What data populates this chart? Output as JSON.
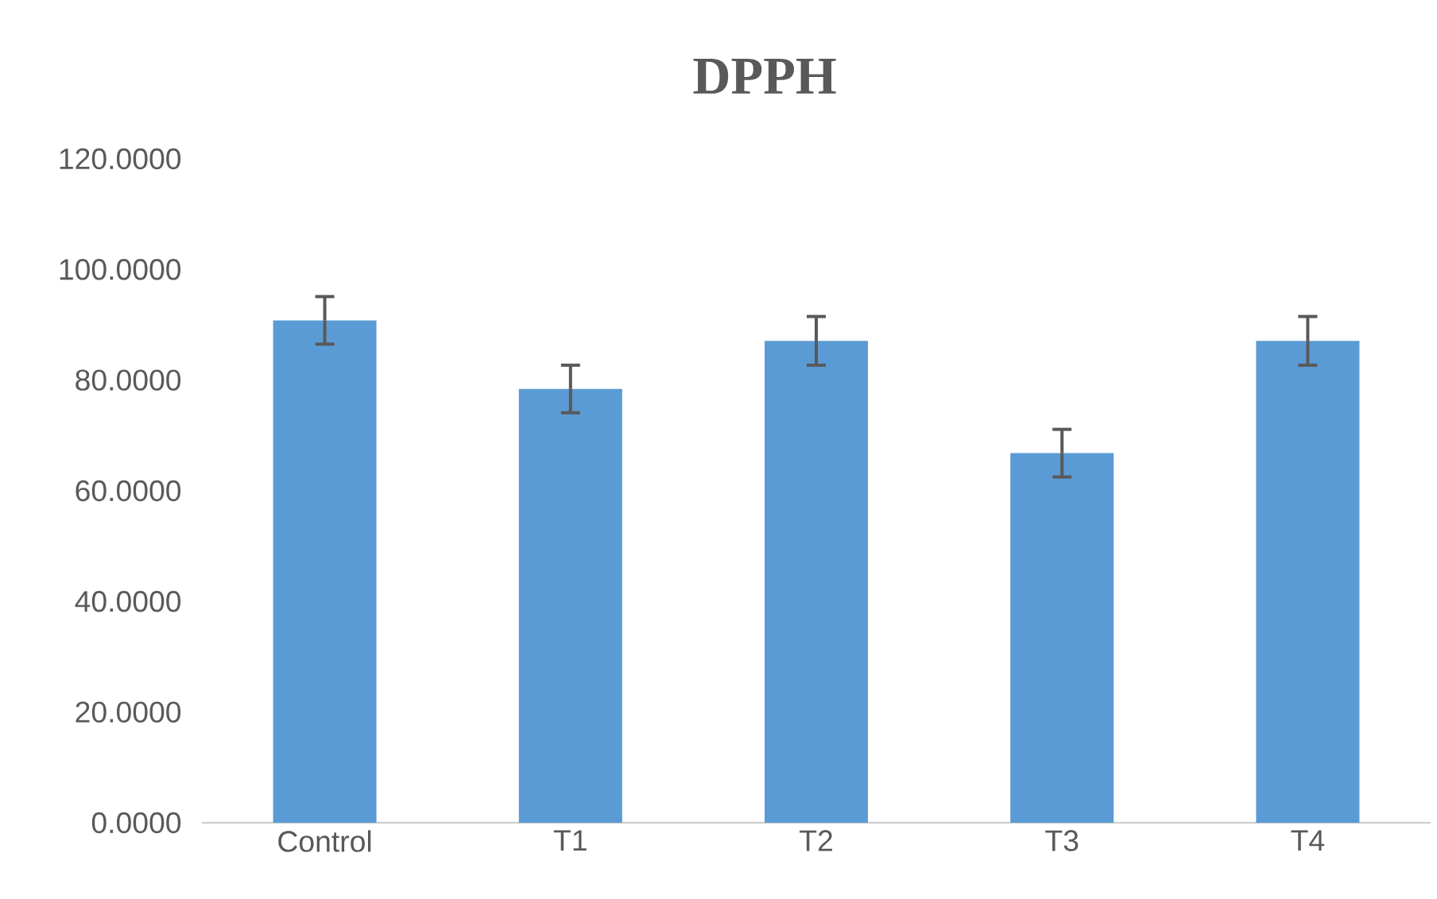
{
  "chart_data": {
    "type": "bar",
    "title": "DPPH",
    "categories": [
      "Control",
      "T1",
      "T2",
      "T3",
      "T4"
    ],
    "values": [
      90.8,
      78.4,
      87.1,
      66.8,
      87.1
    ],
    "errors": [
      4.3,
      4.3,
      4.4,
      4.3,
      4.4
    ],
    "color": "#5b9bd5",
    "ylim": [
      0,
      120
    ],
    "yticks": [
      {
        "value": 0,
        "label": "0.0000"
      },
      {
        "value": 20,
        "label": "20.0000"
      },
      {
        "value": 40,
        "label": "40.0000"
      },
      {
        "value": 60,
        "label": "60.0000"
      },
      {
        "value": 80,
        "label": "80.0000"
      },
      {
        "value": 100,
        "label": "100.0000"
      },
      {
        "value": 120,
        "label": "120.0000"
      }
    ],
    "grid": false
  }
}
